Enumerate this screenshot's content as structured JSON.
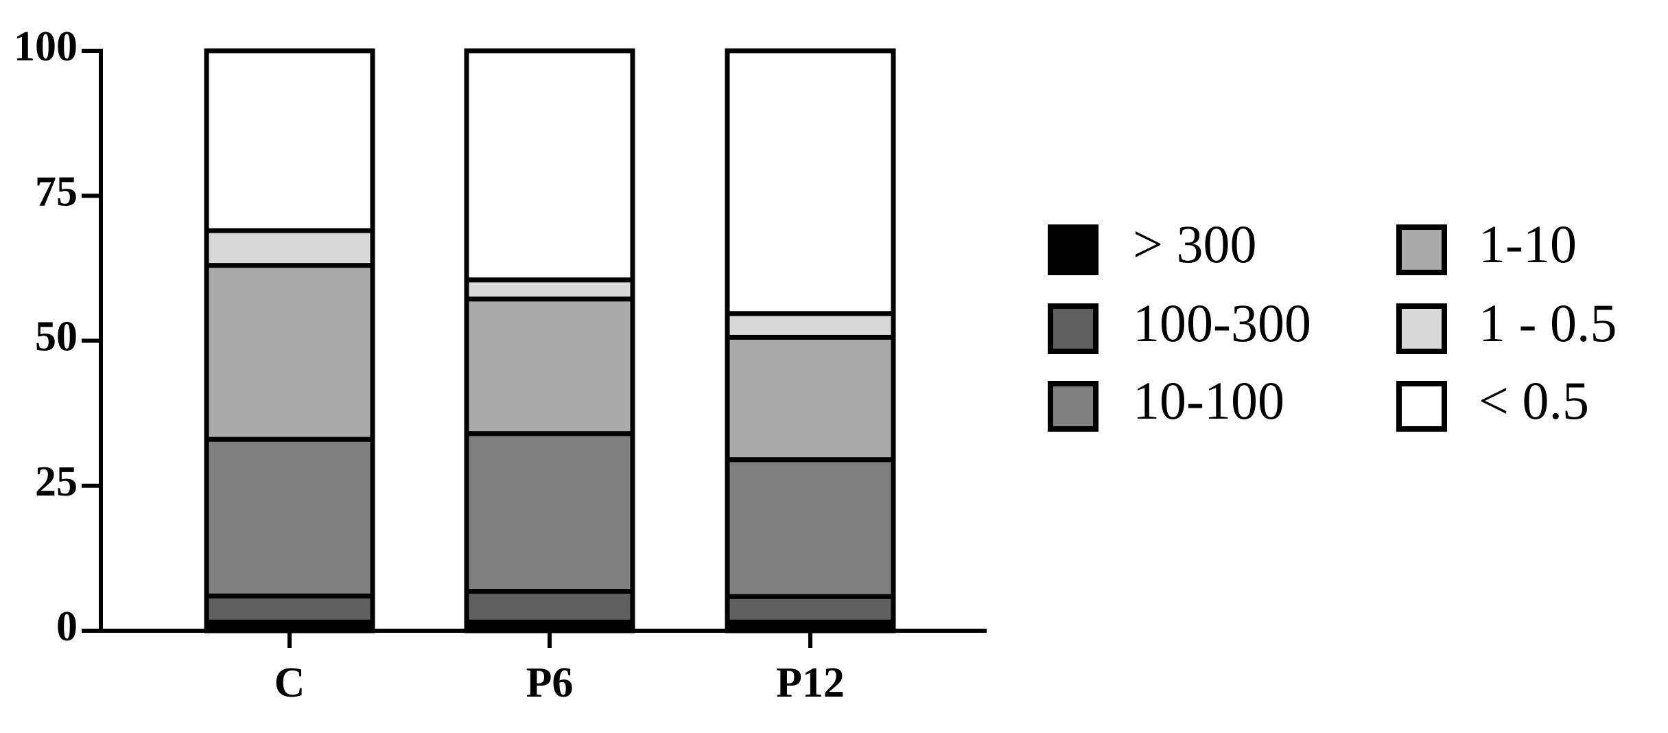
{
  "chart_data": {
    "type": "stacked_bar",
    "categories": [
      "C",
      "P6",
      "P12"
    ],
    "series": [
      {
        "name": "> 300",
        "color": "#000000",
        "values": [
          1.5,
          1.5,
          1.5
        ]
      },
      {
        "name": "100-300",
        "color": "#606060",
        "values": [
          4.5,
          5.3,
          4.4
        ]
      },
      {
        "name": "10-100",
        "color": "#808080",
        "values": [
          27,
          27.2,
          23.6
        ]
      },
      {
        "name": "1-10",
        "color": "#aaaaaa",
        "values": [
          30,
          23.2,
          21.1
        ]
      },
      {
        "name": "1 - 0.5",
        "color": "#d9d9d9",
        "values": [
          6,
          3.3,
          4.1
        ]
      },
      {
        "name": "< 0.5",
        "color": "#ffffff",
        "values": [
          31,
          39.5,
          45.3
        ]
      }
    ],
    "ylim": [
      0,
      100
    ],
    "yticks": [
      0,
      25,
      50,
      75,
      100
    ]
  }
}
